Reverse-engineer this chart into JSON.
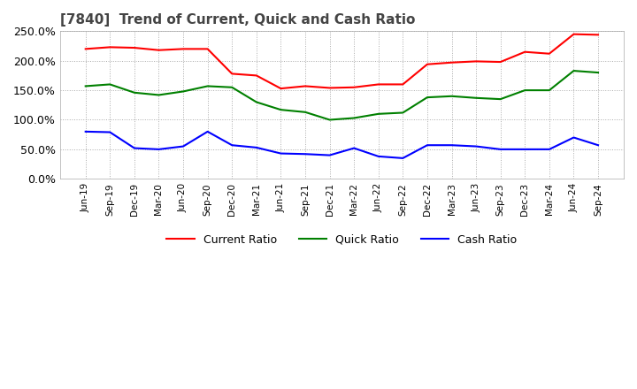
{
  "title": "[7840]  Trend of Current, Quick and Cash Ratio",
  "x_labels": [
    "Jun-19",
    "Sep-19",
    "Dec-19",
    "Mar-20",
    "Jun-20",
    "Sep-20",
    "Dec-20",
    "Mar-21",
    "Jun-21",
    "Sep-21",
    "Dec-21",
    "Mar-22",
    "Jun-22",
    "Sep-22",
    "Dec-22",
    "Mar-23",
    "Jun-23",
    "Sep-23",
    "Dec-23",
    "Mar-24",
    "Jun-24",
    "Sep-24"
  ],
  "current_ratio": [
    220,
    223,
    222,
    218,
    220,
    220,
    178,
    175,
    153,
    157,
    154,
    155,
    160,
    160,
    194,
    197,
    199,
    198,
    215,
    212,
    245,
    244
  ],
  "quick_ratio": [
    157,
    160,
    146,
    142,
    148,
    157,
    155,
    130,
    117,
    113,
    100,
    103,
    110,
    112,
    138,
    140,
    137,
    135,
    150,
    150,
    183,
    180
  ],
  "cash_ratio": [
    80,
    79,
    52,
    50,
    55,
    80,
    57,
    53,
    43,
    42,
    40,
    52,
    38,
    35,
    57,
    57,
    55,
    50,
    50,
    50,
    70,
    57
  ],
  "ylim": [
    0,
    250
  ],
  "yticks": [
    0,
    50,
    100,
    150,
    200,
    250
  ],
  "colors": {
    "current": "#ff0000",
    "quick": "#008000",
    "cash": "#0000ff"
  },
  "legend_labels": [
    "Current Ratio",
    "Quick Ratio",
    "Cash Ratio"
  ],
  "background_color": "#ffffff",
  "grid_color": "#aaaaaa"
}
